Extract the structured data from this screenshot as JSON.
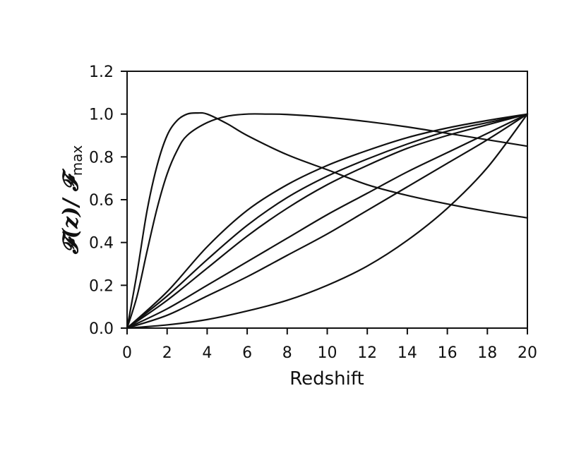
{
  "chart_data": {
    "type": "line",
    "xlabel": "Redshift",
    "ylabel": {
      "main": "𝓕(z)/ 𝓕",
      "sub": "max"
    },
    "xlim": [
      0,
      20
    ],
    "ylim": [
      0,
      1.2
    ],
    "xticks": [
      "0",
      "2",
      "4",
      "6",
      "8",
      "10",
      "12",
      "14",
      "16",
      "18",
      "20"
    ],
    "yticks": [
      "0.0",
      "0.2",
      "0.4",
      "0.6",
      "0.8",
      "1.0",
      "1.2"
    ],
    "grid": false,
    "legend": "none",
    "line_color": "#111111",
    "series": [
      {
        "x": [
          0,
          0.5,
          1,
          1.5,
          2,
          2.5,
          3,
          3.5,
          4,
          5,
          6,
          8,
          10,
          12,
          14,
          16,
          18,
          20
        ],
        "y": [
          0,
          0.26,
          0.55,
          0.76,
          0.9,
          0.97,
          1.0,
          1.005,
          1.0,
          0.955,
          0.9,
          0.81,
          0.74,
          0.67,
          0.62,
          0.58,
          0.545,
          0.515
        ]
      },
      {
        "x": [
          0,
          0.5,
          1,
          1.5,
          2,
          2.5,
          3,
          4,
          5,
          6,
          7,
          8,
          10,
          12,
          14,
          16,
          18,
          20
        ],
        "y": [
          0,
          0.15,
          0.36,
          0.56,
          0.72,
          0.83,
          0.9,
          0.96,
          0.99,
          1.0,
          1.0,
          0.998,
          0.985,
          0.965,
          0.94,
          0.91,
          0.88,
          0.85
        ]
      },
      {
        "x": [
          0,
          2,
          4,
          6,
          8,
          10,
          12,
          14,
          16,
          18,
          20
        ],
        "y": [
          0,
          0.17,
          0.38,
          0.55,
          0.67,
          0.76,
          0.83,
          0.89,
          0.935,
          0.97,
          1.0
        ]
      },
      {
        "x": [
          0,
          2,
          4,
          6,
          8,
          10,
          12,
          14,
          16,
          18,
          20
        ],
        "y": [
          0,
          0.15,
          0.32,
          0.48,
          0.61,
          0.71,
          0.79,
          0.86,
          0.92,
          0.96,
          1.0
        ]
      },
      {
        "x": [
          0,
          2,
          4,
          6,
          8,
          10,
          12,
          14,
          16,
          18,
          20
        ],
        "y": [
          0,
          0.13,
          0.28,
          0.43,
          0.56,
          0.67,
          0.76,
          0.84,
          0.9,
          0.95,
          1.0
        ]
      },
      {
        "x": [
          0,
          2,
          4,
          6,
          8,
          10,
          12,
          14,
          16,
          18,
          20
        ],
        "y": [
          0,
          0.09,
          0.2,
          0.31,
          0.42,
          0.53,
          0.63,
          0.73,
          0.82,
          0.91,
          1.0
        ]
      },
      {
        "x": [
          0,
          2,
          4,
          6,
          8,
          10,
          12,
          14,
          16,
          18,
          20
        ],
        "y": [
          0,
          0.06,
          0.15,
          0.24,
          0.34,
          0.44,
          0.55,
          0.66,
          0.77,
          0.88,
          1.0
        ]
      },
      {
        "x": [
          0,
          2,
          4,
          6,
          8,
          10,
          12,
          14,
          16,
          18,
          20
        ],
        "y": [
          0,
          0.015,
          0.04,
          0.08,
          0.13,
          0.2,
          0.29,
          0.41,
          0.56,
          0.75,
          1.0
        ]
      }
    ]
  }
}
